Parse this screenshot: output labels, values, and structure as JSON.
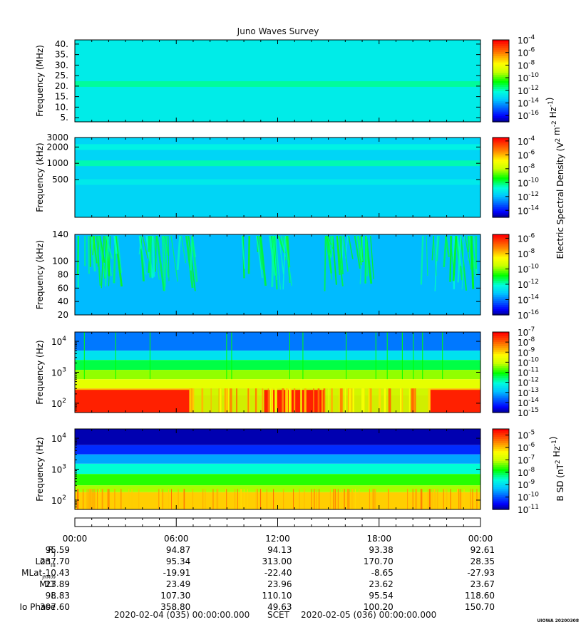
{
  "title": "Juno Waves Survey",
  "colors": {
    "text": "#111111",
    "frame": "#000000"
  },
  "panels": [
    {
      "ylabel": "Frequency (MHz)",
      "scale": "linear",
      "ylim": [
        3.0,
        42.0
      ],
      "ticks": [
        "5.",
        "10.",
        "15.",
        "20.",
        "25.",
        "30.",
        "35.",
        "40."
      ],
      "tickvals": [
        5,
        10,
        15,
        20,
        25,
        30,
        35,
        40
      ],
      "colorbar_ticks": [
        "-4",
        "-6",
        "-8",
        "-10",
        "-12",
        "-14",
        "-16"
      ],
      "clim": [
        -17,
        -4
      ]
    },
    {
      "ylabel": "Frequency (kHz)",
      "scale": "log",
      "ylim": [
        100,
        3000
      ],
      "ticks": [
        "3000",
        "2000",
        "1000",
        "500"
      ],
      "tickvals": [
        3000,
        2000,
        1000,
        500
      ],
      "colorbar_ticks": [
        "-4",
        "-6",
        "-8",
        "-10",
        "-12",
        "-14"
      ],
      "clim": [
        -15,
        -3.5
      ]
    },
    {
      "ylabel": "Frequency (kHz)",
      "scale": "linear",
      "ylim": [
        20,
        140
      ],
      "ticks": [
        "140",
        "100",
        "80",
        "60",
        "40",
        "20"
      ],
      "tickvals": [
        140,
        100,
        80,
        60,
        40,
        20
      ],
      "colorbar_ticks": [
        "-6",
        "-8",
        "-10",
        "-12",
        "-14",
        "-16"
      ],
      "clim": [
        -16,
        -5.5
      ]
    },
    {
      "ylabel": "Frequency (Hz)",
      "scale": "log",
      "ylim": [
        50,
        20000
      ],
      "ticks": [
        {
          "m": "4",
          "v": 10000
        },
        {
          "m": "3",
          "v": 1000
        },
        {
          "m": "2",
          "v": 100
        }
      ],
      "colorbar_ticks": [
        "-7",
        "-8",
        "-9",
        "-10",
        "-11",
        "-12",
        "-13",
        "-14",
        "-15"
      ],
      "clim": [
        -15,
        -7
      ]
    },
    {
      "ylabel": "Frequency (Hz)",
      "scale": "log",
      "ylim": [
        50,
        20000
      ],
      "ticks": [
        {
          "m": "4",
          "v": 10000
        },
        {
          "m": "3",
          "v": 1000
        },
        {
          "m": "2",
          "v": 100
        }
      ],
      "colorbar_ticks": [
        "-5",
        "-6",
        "-7",
        "-8",
        "-9",
        "-10",
        "-11"
      ],
      "clim": [
        -11,
        -4.5
      ]
    }
  ],
  "colorbar_labels": {
    "electric": {
      "main": "Electric Spectral Density (V",
      "sup1": "2",
      "mid": " m",
      "sup2": "-2",
      "mid2": " Hz",
      "sup3": "-1",
      "end": ")"
    },
    "magnetic": {
      "main": "B SD (nT",
      "sup1": "2",
      "mid": " Hz",
      "sup2": "-1",
      "end": ")"
    }
  },
  "colorbar_base": "10",
  "time_axis": {
    "labels": [
      "00:00",
      "06:00",
      "12:00",
      "18:00",
      "00:00"
    ],
    "hours": [
      0,
      6,
      12,
      18,
      24
    ]
  },
  "ephemeris": {
    "rows": [
      {
        "label": "R",
        "sub": "J",
        "values": [
          "95.59",
          "94.87",
          "94.13",
          "93.38",
          "92.61"
        ]
      },
      {
        "label": "Lon",
        "sub": "III",
        "values": [
          "237.70",
          "95.34",
          "313.00",
          "170.70",
          "28.35"
        ]
      },
      {
        "label": "MLat",
        "sub": "JRM09",
        "values": [
          "-10.43",
          "-19.91",
          "-22.40",
          "-8.65",
          "-27.93"
        ]
      },
      {
        "label": "MLT",
        "sub": "",
        "values": [
          "23.89",
          "23.49",
          "23.96",
          "23.62",
          "23.67"
        ]
      },
      {
        "label": "L",
        "sub": "",
        "values": [
          "98.83",
          "107.30",
          "110.10",
          "95.54",
          "118.60"
        ]
      },
      {
        "label": "Io Phase",
        "sub": "",
        "values": [
          "307.60",
          "358.80",
          "49.63",
          "100.20",
          "150.70"
        ]
      }
    ]
  },
  "footer": {
    "start": "2020-02-04 (035) 00:00:00.000",
    "mid": "SCET",
    "end": "2020-02-05 (036) 00:00:00.000"
  },
  "stamp": "UIOWA 20200308",
  "chart_data": [
    {
      "type": "heatmap",
      "title": "Juno Waves Survey",
      "ylabel": "Frequency (MHz)",
      "xlim_hours": [
        0,
        24
      ],
      "ylim": [
        3,
        42
      ],
      "clim_log10": [
        -17,
        -4
      ],
      "features": [
        {
          "name": "background",
          "log10_level": -12.5
        },
        {
          "name": "band",
          "freq": 21,
          "log10_level": -11.5
        }
      ]
    },
    {
      "type": "heatmap",
      "ylabel": "Frequency (kHz)",
      "xlim_hours": [
        0,
        24
      ],
      "ylim": [
        100,
        3000
      ],
      "clim_log10": [
        -15,
        -3.5
      ],
      "features": [
        {
          "name": "background",
          "log10_level": -11.5
        },
        {
          "name": "band",
          "freq": 1000,
          "log10_level": -10.3
        },
        {
          "name": "band",
          "freq": 2000,
          "log10_level": -10.8
        },
        {
          "name": "band",
          "freq": 450,
          "log10_level": -11.0
        }
      ]
    },
    {
      "type": "heatmap",
      "ylabel": "Frequency (kHz)",
      "xlim_hours": [
        0,
        24
      ],
      "ylim": [
        20,
        140
      ],
      "clim_log10": [
        -16,
        -5.5
      ],
      "bursts_hours": [
        [
          0.2,
          2.6
        ],
        [
          3.8,
          7.2
        ],
        [
          9.8,
          12.6
        ],
        [
          14.8,
          17.6
        ],
        [
          20.5,
          23.8
        ]
      ]
    },
    {
      "type": "heatmap",
      "ylabel": "Frequency (Hz)",
      "xlim_hours": [
        0,
        24
      ],
      "ylim": [
        50,
        20000
      ],
      "clim_log10": [
        -15,
        -7
      ],
      "intense_intervals_hours": [
        [
          0,
          6.8
        ],
        [
          11.2,
          14.8
        ],
        [
          21.0,
          24
        ]
      ]
    },
    {
      "type": "heatmap",
      "ylabel": "Frequency (Hz)",
      "xlim_hours": [
        0,
        24
      ],
      "ylim": [
        50,
        20000
      ],
      "clim_log10": [
        -11,
        -4.5
      ]
    }
  ]
}
